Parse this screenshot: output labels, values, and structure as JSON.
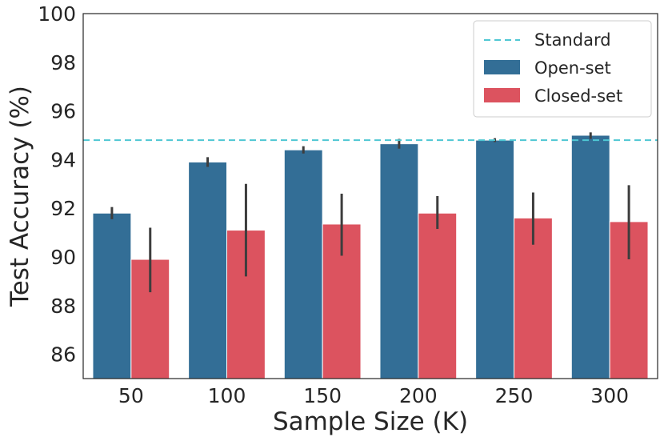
{
  "chart_data": {
    "type": "bar",
    "title": "",
    "xlabel": "Sample Size (K)",
    "ylabel": "Test Accuracy (%)",
    "categories": [
      "50",
      "100",
      "150",
      "200",
      "250",
      "300"
    ],
    "ylim": [
      85,
      100
    ],
    "yticks": [
      "86",
      "88",
      "90",
      "92",
      "94",
      "96",
      "98",
      "100"
    ],
    "grid": false,
    "legend_position": "top-right",
    "series": [
      {
        "name": "Open-set",
        "color": "#336e96",
        "values": [
          91.8,
          93.9,
          94.4,
          94.65,
          94.8,
          95.0
        ],
        "error_low": [
          91.55,
          93.7,
          94.25,
          94.45,
          94.72,
          94.85
        ],
        "error_high": [
          92.05,
          94.1,
          94.55,
          94.85,
          94.88,
          95.12
        ]
      },
      {
        "name": "Closed-set",
        "color": "#dc535f",
        "values": [
          89.9,
          91.1,
          91.35,
          91.8,
          91.6,
          91.45
        ],
        "error_low": [
          88.55,
          89.2,
          90.05,
          91.15,
          90.5,
          89.9
        ],
        "error_high": [
          91.2,
          93.0,
          92.6,
          92.5,
          92.65,
          92.95
        ]
      }
    ],
    "reference_line": {
      "name": "Standard",
      "value": 94.8,
      "color": "#4fc7d3",
      "style": "dashed"
    }
  }
}
